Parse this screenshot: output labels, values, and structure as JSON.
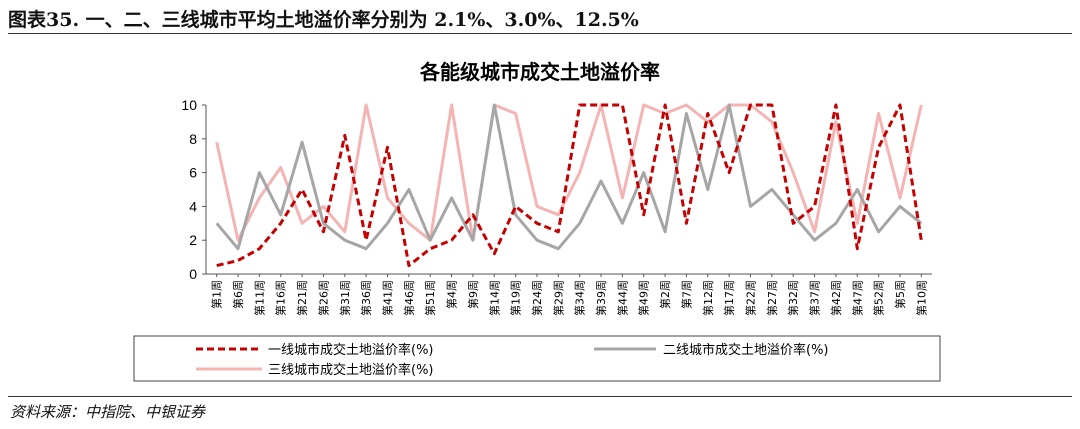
{
  "figure_title": "图表35.  一、二、三线城市平均土地溢价率分别为 2.1%、3.0%、12.5%",
  "source": "资料来源：中指院、中银证券",
  "colors": {
    "tier1": "#c40000",
    "tier2": "#a6a6a6",
    "tier3": "#f4b4b4"
  },
  "chart_data": {
    "type": "line",
    "title": "各能级城市成交土地溢价率",
    "xlabel": "",
    "ylabel": "",
    "ylim": [
      0,
      10
    ],
    "yticks": [
      0,
      2,
      4,
      6,
      8,
      10
    ],
    "grid": false,
    "legend_position": "bottom",
    "x": [
      "第1周",
      "第6周",
      "第11周",
      "第16周",
      "第21周",
      "第26周",
      "第31周",
      "第36周",
      "第41周",
      "第46周",
      "第51周",
      "第4周",
      "第9周",
      "第14周",
      "第19周",
      "第24周",
      "第29周",
      "第34周",
      "第39周",
      "第44周",
      "第49周",
      "第2周",
      "第7周",
      "第12周",
      "第17周",
      "第22周",
      "第27周",
      "第32周",
      "第37周",
      "第42周",
      "第47周",
      "第52周",
      "第5周",
      "第10周"
    ],
    "series": [
      {
        "name": "一线城市成交土地溢价率(%)",
        "style": "dashed",
        "color": "#c40000",
        "values": [
          0.5,
          0.8,
          1.5,
          3.0,
          5.0,
          2.5,
          8.2,
          2.0,
          7.5,
          0.5,
          1.5,
          2.0,
          3.5,
          1.2,
          4.0,
          3.0,
          2.5,
          10,
          10,
          10,
          3.5,
          10,
          3.0,
          9.5,
          6.0,
          10,
          10,
          3.0,
          4.0,
          10,
          1.5,
          7.5,
          10,
          2.0
        ]
      },
      {
        "name": "二线城市成交土地溢价率(%)",
        "style": "solid",
        "color": "#a6a6a6",
        "values": [
          3.0,
          1.5,
          6.0,
          3.5,
          7.8,
          3.0,
          2.0,
          1.5,
          3.0,
          5.0,
          2.0,
          4.5,
          2.0,
          10,
          3.5,
          2.0,
          1.5,
          3.0,
          5.5,
          3.0,
          6.0,
          2.5,
          9.5,
          5.0,
          10,
          4.0,
          5.0,
          3.5,
          2.0,
          3.0,
          5.0,
          2.5,
          4.0,
          3.0
        ]
      },
      {
        "name": "三线城市成交土地溢价率(%)",
        "style": "solid",
        "color": "#f4b4b4",
        "values": [
          7.8,
          2.0,
          4.5,
          6.3,
          3.0,
          4.0,
          2.5,
          10,
          4.5,
          3.0,
          2.0,
          10,
          2.0,
          10,
          9.5,
          4.0,
          3.5,
          6.0,
          10,
          4.5,
          10,
          9.5,
          10,
          9.0,
          10,
          10,
          9.0,
          6.0,
          2.5,
          9.0,
          3.0,
          9.5,
          4.5,
          10
        ]
      }
    ]
  },
  "legend": {
    "items": [
      {
        "label": "一线城市成交土地溢价率(%)"
      },
      {
        "label": "二线城市成交土地溢价率(%)"
      },
      {
        "label": "三线城市成交土地溢价率(%)"
      }
    ]
  }
}
